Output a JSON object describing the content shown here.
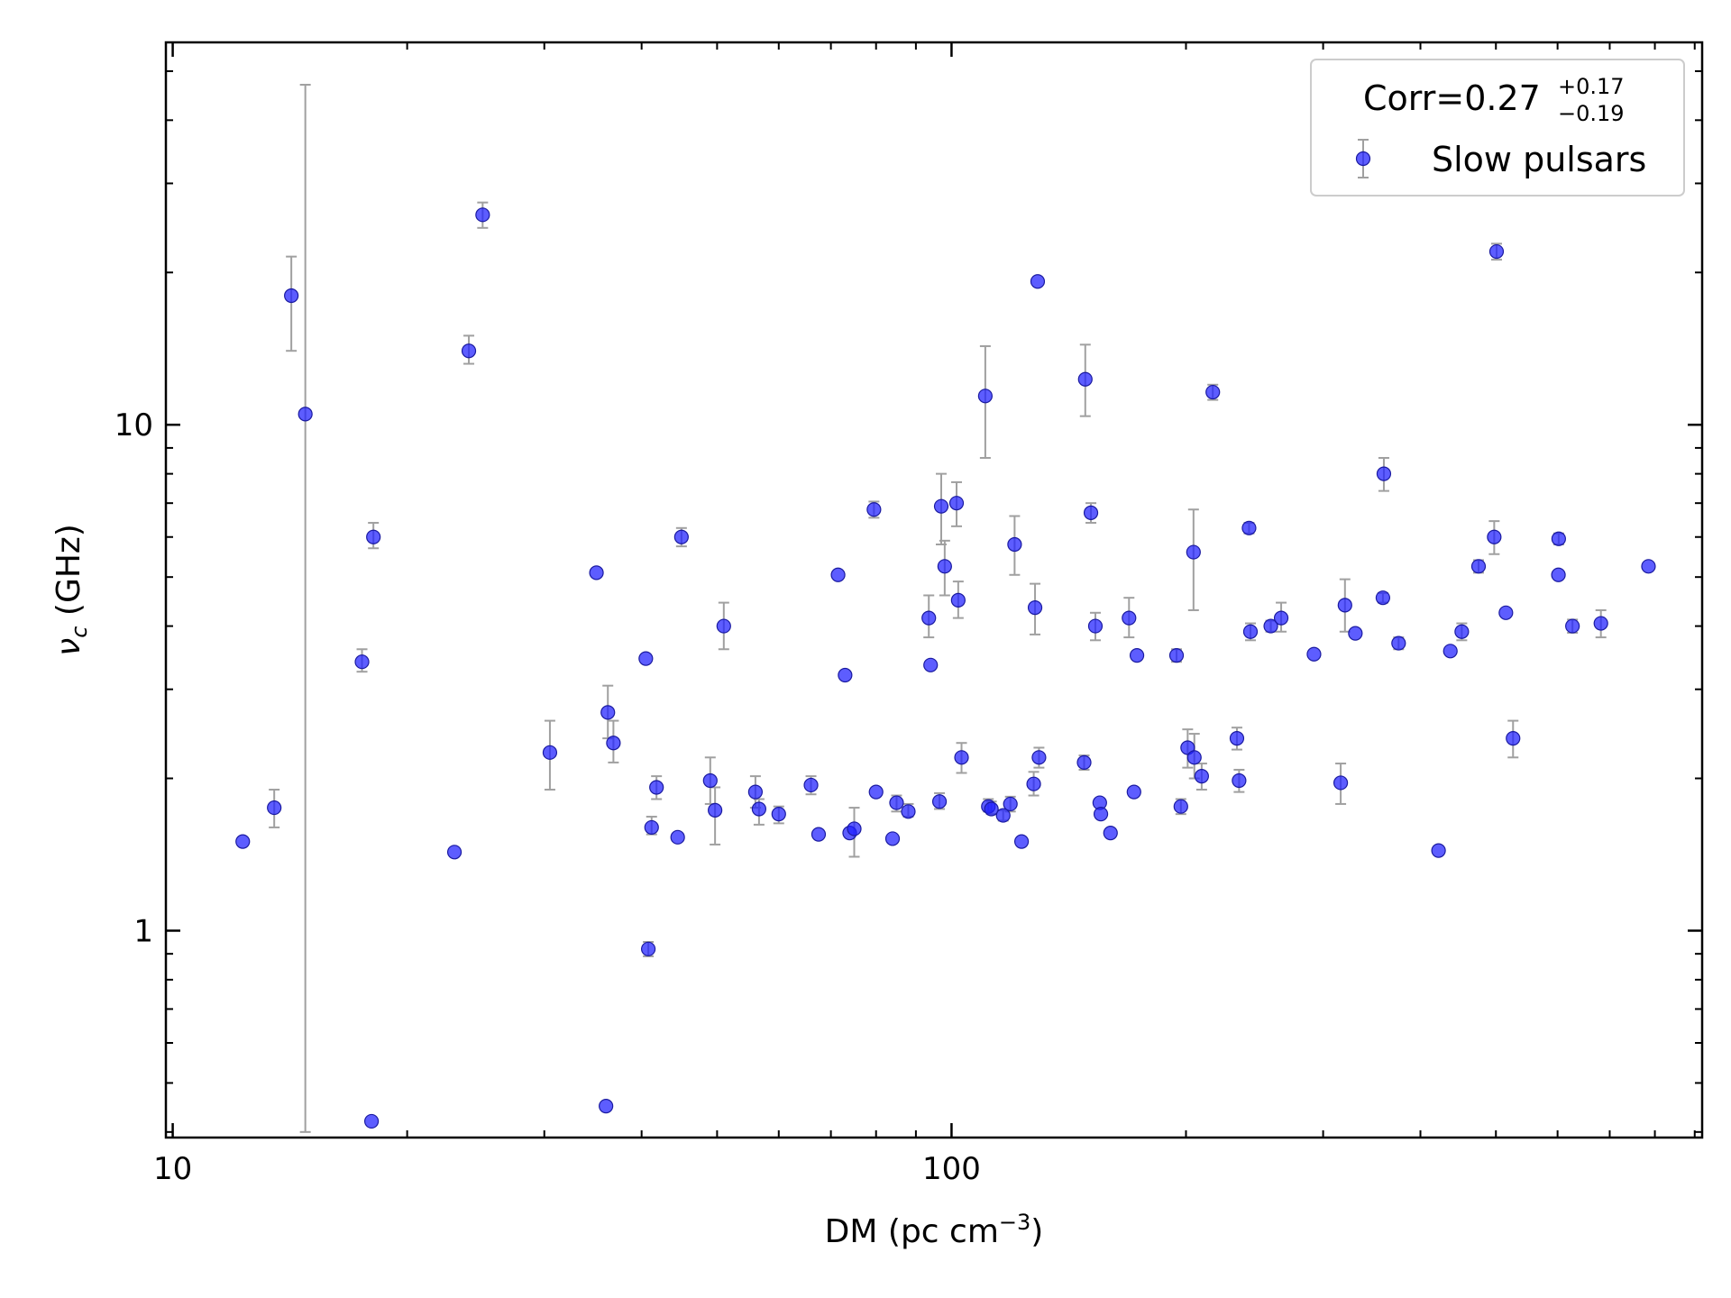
{
  "chart_data": {
    "type": "scatter",
    "xlabel": "DM (pc cm",
    "xlabel_sup": "−3",
    "xlabel_close": ")",
    "ylabel_greek": "ν",
    "ylabel_sub": "c",
    "ylabel_rest": " (GHz)",
    "x_scale": "log",
    "y_scale": "log",
    "xlim": [
      9.8,
      920
    ],
    "ylim": [
      0.39,
      57
    ],
    "x_ticks": [
      {
        "value": 10,
        "label": "10"
      },
      {
        "value": 100,
        "label": "100"
      }
    ],
    "y_ticks": [
      {
        "value": 1,
        "label": "1"
      },
      {
        "value": 10,
        "label": "10"
      }
    ],
    "grid": false,
    "legend": {
      "placement": "top-right",
      "corr_label": "Corr=0.27",
      "corr_plus": "+0.17",
      "corr_minus": "−0.19",
      "series_label": "Slow pulsars"
    },
    "colors": {
      "marker": "#1f1fff",
      "errorbar": "#a0a0a0"
    },
    "series": [
      {
        "name": "Slow pulsars",
        "points": [
          {
            "x": 12.3,
            "y": 1.5
          },
          {
            "x": 13.5,
            "y": 1.75,
            "ylo": 1.6,
            "yhi": 1.9
          },
          {
            "x": 14.2,
            "y": 18.0,
            "ylo": 14.0,
            "yhi": 21.5
          },
          {
            "x": 14.8,
            "y": 10.5,
            "ylo": 0.4,
            "yhi": 47.0
          },
          {
            "x": 17.5,
            "y": 3.4,
            "ylo": 3.25,
            "yhi": 3.6
          },
          {
            "x": 18.1,
            "y": 6.0,
            "ylo": 5.7,
            "yhi": 6.4
          },
          {
            "x": 18.0,
            "y": 0.42
          },
          {
            "x": 23.0,
            "y": 1.43
          },
          {
            "x": 24.0,
            "y": 14.0,
            "ylo": 13.2,
            "yhi": 15.0
          },
          {
            "x": 25.0,
            "y": 26.0,
            "ylo": 24.5,
            "yhi": 27.5
          },
          {
            "x": 30.5,
            "y": 2.25,
            "ylo": 1.9,
            "yhi": 2.6
          },
          {
            "x": 35.0,
            "y": 5.1
          },
          {
            "x": 36.0,
            "y": 0.45
          },
          {
            "x": 36.2,
            "y": 2.7,
            "ylo": 2.4,
            "yhi": 3.05
          },
          {
            "x": 36.8,
            "y": 2.35,
            "ylo": 2.15,
            "yhi": 2.6
          },
          {
            "x": 40.5,
            "y": 3.45
          },
          {
            "x": 40.8,
            "y": 0.92,
            "ylo": 0.89,
            "yhi": 0.95
          },
          {
            "x": 41.2,
            "y": 1.6,
            "ylo": 1.55,
            "yhi": 1.68
          },
          {
            "x": 41.8,
            "y": 1.92,
            "ylo": 1.82,
            "yhi": 2.02
          },
          {
            "x": 44.5,
            "y": 1.53
          },
          {
            "x": 45.0,
            "y": 6.0,
            "ylo": 5.75,
            "yhi": 6.25
          },
          {
            "x": 49.0,
            "y": 1.98,
            "ylo": 1.78,
            "yhi": 2.2
          },
          {
            "x": 49.7,
            "y": 1.73,
            "ylo": 1.48,
            "yhi": 1.92
          },
          {
            "x": 51.0,
            "y": 4.0,
            "ylo": 3.6,
            "yhi": 4.45
          },
          {
            "x": 56.0,
            "y": 1.88,
            "ylo": 1.75,
            "yhi": 2.02
          },
          {
            "x": 56.6,
            "y": 1.74,
            "ylo": 1.62,
            "yhi": 1.82
          },
          {
            "x": 60.0,
            "y": 1.7,
            "ylo": 1.63,
            "yhi": 1.76
          },
          {
            "x": 66.0,
            "y": 1.94,
            "ylo": 1.86,
            "yhi": 2.02
          },
          {
            "x": 67.5,
            "y": 1.55
          },
          {
            "x": 71.5,
            "y": 5.05
          },
          {
            "x": 73.0,
            "y": 3.2
          },
          {
            "x": 74.0,
            "y": 1.56
          },
          {
            "x": 75.0,
            "y": 1.59,
            "ylo": 1.4,
            "yhi": 1.75
          },
          {
            "x": 79.5,
            "y": 6.8,
            "ylo": 6.55,
            "yhi": 7.05
          },
          {
            "x": 80.0,
            "y": 1.88
          },
          {
            "x": 84.0,
            "y": 1.52
          },
          {
            "x": 85.0,
            "y": 1.79,
            "ylo": 1.72,
            "yhi": 1.85
          },
          {
            "x": 88.0,
            "y": 1.72,
            "ylo": 1.68,
            "yhi": 1.78
          },
          {
            "x": 93.5,
            "y": 4.15,
            "ylo": 3.8,
            "yhi": 4.6
          },
          {
            "x": 94.0,
            "y": 3.35
          },
          {
            "x": 96.5,
            "y": 1.8,
            "ylo": 1.74,
            "yhi": 1.87
          },
          {
            "x": 97.0,
            "y": 6.9,
            "ylo": 5.8,
            "yhi": 8.0
          },
          {
            "x": 98.0,
            "y": 5.25,
            "ylo": 4.6,
            "yhi": 5.9
          },
          {
            "x": 101.5,
            "y": 7.0,
            "ylo": 6.3,
            "yhi": 7.7
          },
          {
            "x": 102.0,
            "y": 4.5,
            "ylo": 4.15,
            "yhi": 4.9
          },
          {
            "x": 103.0,
            "y": 2.2,
            "ylo": 2.05,
            "yhi": 2.35
          },
          {
            "x": 110.5,
            "y": 11.4,
            "ylo": 8.6,
            "yhi": 14.3
          },
          {
            "x": 111.5,
            "y": 1.76,
            "ylo": 1.72,
            "yhi": 1.82
          },
          {
            "x": 112.5,
            "y": 1.74,
            "ylo": 1.7,
            "yhi": 1.8
          },
          {
            "x": 116.5,
            "y": 1.69,
            "ylo": 1.65,
            "yhi": 1.73
          },
          {
            "x": 119.0,
            "y": 1.78,
            "ylo": 1.72,
            "yhi": 1.84
          },
          {
            "x": 120.5,
            "y": 5.8,
            "ylo": 5.05,
            "yhi": 6.6
          },
          {
            "x": 123.0,
            "y": 1.5
          },
          {
            "x": 127.5,
            "y": 1.95,
            "ylo": 1.85,
            "yhi": 2.06
          },
          {
            "x": 128.0,
            "y": 4.35,
            "ylo": 3.85,
            "yhi": 4.85
          },
          {
            "x": 129.0,
            "y": 19.2
          },
          {
            "x": 129.5,
            "y": 2.2,
            "ylo": 2.1,
            "yhi": 2.3
          },
          {
            "x": 148.0,
            "y": 2.15,
            "ylo": 2.08,
            "yhi": 2.22
          },
          {
            "x": 148.5,
            "y": 12.3,
            "ylo": 10.4,
            "yhi": 14.4
          },
          {
            "x": 151.0,
            "y": 6.7,
            "ylo": 6.4,
            "yhi": 7.0
          },
          {
            "x": 153.0,
            "y": 4.0,
            "ylo": 3.75,
            "yhi": 4.25
          },
          {
            "x": 155.0,
            "y": 1.79
          },
          {
            "x": 155.5,
            "y": 1.7
          },
          {
            "x": 160.0,
            "y": 1.56
          },
          {
            "x": 169.0,
            "y": 4.15,
            "ylo": 3.8,
            "yhi": 4.55
          },
          {
            "x": 171.5,
            "y": 1.88
          },
          {
            "x": 173.0,
            "y": 3.5
          },
          {
            "x": 194.5,
            "y": 3.5,
            "ylo": 3.4,
            "yhi": 3.6
          },
          {
            "x": 197.0,
            "y": 1.76,
            "ylo": 1.7,
            "yhi": 1.82
          },
          {
            "x": 201.0,
            "y": 2.3,
            "ylo": 2.1,
            "yhi": 2.5
          },
          {
            "x": 204.5,
            "y": 5.6,
            "ylo": 4.3,
            "yhi": 6.8
          },
          {
            "x": 205.0,
            "y": 2.2,
            "ylo": 2.0,
            "yhi": 2.45
          },
          {
            "x": 209.5,
            "y": 2.02,
            "ylo": 1.9,
            "yhi": 2.14
          },
          {
            "x": 216.5,
            "y": 11.6,
            "ylo": 11.2,
            "yhi": 12.0
          },
          {
            "x": 232.5,
            "y": 2.4,
            "ylo": 2.28,
            "yhi": 2.52
          },
          {
            "x": 234.0,
            "y": 1.98,
            "ylo": 1.88,
            "yhi": 2.08
          },
          {
            "x": 241.0,
            "y": 6.25,
            "ylo": 6.1,
            "yhi": 6.4
          },
          {
            "x": 242.0,
            "y": 3.9,
            "ylo": 3.75,
            "yhi": 4.05
          },
          {
            "x": 257.0,
            "y": 4.0,
            "ylo": 3.9,
            "yhi": 4.1
          },
          {
            "x": 265.0,
            "y": 4.15,
            "ylo": 3.9,
            "yhi": 4.45
          },
          {
            "x": 292.0,
            "y": 3.52
          },
          {
            "x": 316.0,
            "y": 1.96,
            "ylo": 1.78,
            "yhi": 2.14
          },
          {
            "x": 320.0,
            "y": 4.4,
            "ylo": 3.9,
            "yhi": 4.95
          },
          {
            "x": 330.0,
            "y": 3.87
          },
          {
            "x": 358.0,
            "y": 4.55,
            "ylo": 4.45,
            "yhi": 4.65
          },
          {
            "x": 359.0,
            "y": 8.0,
            "ylo": 7.4,
            "yhi": 8.6
          },
          {
            "x": 375.0,
            "y": 3.7,
            "ylo": 3.6,
            "yhi": 3.8
          },
          {
            "x": 422.0,
            "y": 1.44
          },
          {
            "x": 437.0,
            "y": 3.57
          },
          {
            "x": 452.0,
            "y": 3.9,
            "ylo": 3.75,
            "yhi": 4.05
          },
          {
            "x": 475.0,
            "y": 5.25,
            "ylo": 5.1,
            "yhi": 5.4
          },
          {
            "x": 497.5,
            "y": 6.0,
            "ylo": 5.55,
            "yhi": 6.45
          },
          {
            "x": 501.0,
            "y": 22.0,
            "ylo": 21.2,
            "yhi": 22.8
          },
          {
            "x": 515.0,
            "y": 4.25
          },
          {
            "x": 526.0,
            "y": 2.4,
            "ylo": 2.2,
            "yhi": 2.6
          },
          {
            "x": 601.5,
            "y": 5.05
          },
          {
            "x": 602.0,
            "y": 5.95,
            "ylo": 5.8,
            "yhi": 6.1
          },
          {
            "x": 627.0,
            "y": 4.0,
            "ylo": 3.88,
            "yhi": 4.12
          },
          {
            "x": 682.0,
            "y": 4.05,
            "ylo": 3.8,
            "yhi": 4.3
          },
          {
            "x": 785.0,
            "y": 5.25
          }
        ]
      }
    ]
  }
}
